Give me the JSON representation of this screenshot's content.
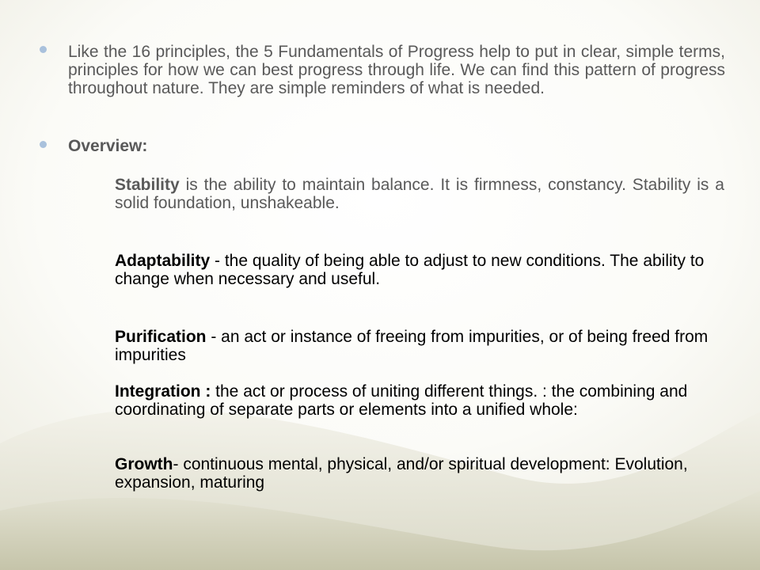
{
  "colors": {
    "bullet": "#a9c1dc",
    "gray_text": "#595959",
    "black_text": "#000000",
    "wave_light": "#dfddd0",
    "wave_dark": "#c5c4aa"
  },
  "bullets": [
    {
      "text": "Like the 16 principles, the 5 Fundamentals of Progress help to put in clear, simple terms, principles for how we can best progress through life. We can find this pattern of progress throughout nature. They are simple reminders of what is needed."
    },
    {
      "text": "Overview:"
    }
  ],
  "definitions": [
    {
      "term": "Stability",
      "text": " is the ability to maintain balance. It is firmness, constancy. Stability is a solid foundation, unshakeable."
    },
    {
      "term": "Adaptability",
      "text": " - the quality of being able to adjust to new conditions. The ability to change when necessary and useful."
    },
    {
      "term": "Purification",
      "text": " - an act or instance of freeing from impurities, or of being freed from impurities"
    },
    {
      "term": "Integration :",
      "text": " the act or process of uniting different things. : the combining and coordinating of separate parts or elements into a unified whole:"
    },
    {
      "term": "Growth",
      "text": "- continuous mental, physical, and/or spiritual development: Evolution, expansion, maturing"
    }
  ]
}
